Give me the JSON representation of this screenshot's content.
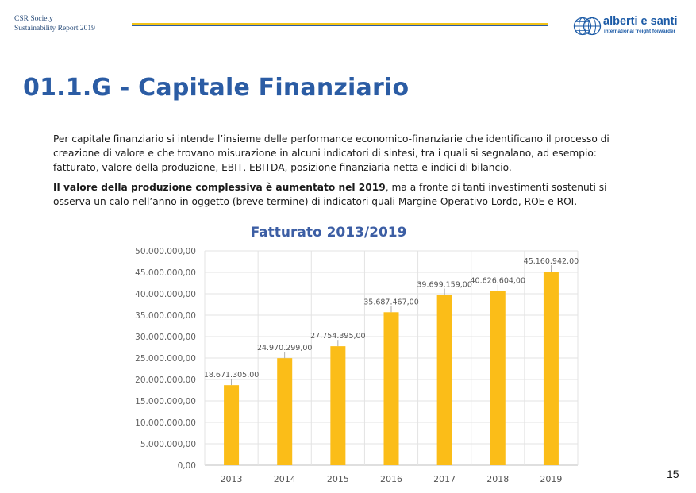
{
  "header": {
    "org_line": "CSR Society",
    "report_line": "Sustainability Report 2019"
  },
  "logo": {
    "name": "alberti e santi",
    "tagline": "international freight forwarder",
    "icon": "globe-icon"
  },
  "colors": {
    "title_blue": "#2b5ca4",
    "stripe_yellow": "#f2c318",
    "stripe_blue": "#2b5ca4",
    "bar_yellow": "#fbbd18",
    "chart_title_blue": "#3c5ea4"
  },
  "page": {
    "title": "01.1.G - Capitale Finanziario",
    "paragraph1": "Per capitale finanziario si intende l’insieme delle performance economico-finanziarie che identificano il processo di creazione di valore e che trovano misurazione in alcuni indicatori di sintesi, tra i quali si segnalano, ad esempio: fatturato, valore della produzione, EBIT, EBITDA, posizione finanziaria netta e indici di bilancio.",
    "paragraph2_bold": "Il valore della produzione complessiva è aumentato nel 2019",
    "paragraph2_rest": ", ma a fronte di tanti investimenti sostenuti si osserva un calo nell’anno in oggetto (breve termine) di indicatori quali Margine Operativo Lordo, ROE e ROI.",
    "page_number": "15"
  },
  "chart_data": {
    "type": "bar",
    "title": "Fatturato 2013/2019",
    "xlabel": "",
    "ylabel": "",
    "categories": [
      "2013",
      "2014",
      "2015",
      "2016",
      "2017",
      "2018",
      "2019"
    ],
    "values": [
      18671305.0,
      24970299.0,
      27754395.0,
      35687467.0,
      39699159.0,
      40626604.0,
      45160942.0
    ],
    "value_labels": [
      "18.671.305,00",
      "24.970.299,00",
      "27.754.395,00",
      "35.687.467,00",
      "39.699.159,00",
      "40.626.604,00",
      "45.160.942,00"
    ],
    "ylim": [
      0,
      50000000
    ],
    "yticks": [
      0,
      5000000,
      10000000,
      15000000,
      20000000,
      25000000,
      30000000,
      35000000,
      40000000,
      45000000,
      50000000
    ],
    "ytick_labels": [
      "0,00",
      "5.000.000,00",
      "10.000.000,00",
      "15.000.000,00",
      "20.000.000,00",
      "25.000.000,00",
      "30.000.000,00",
      "35.000.000,00",
      "40.000.000,00",
      "45.000.000,00",
      "50.000.000,00"
    ],
    "grid": true,
    "legend": "none"
  }
}
